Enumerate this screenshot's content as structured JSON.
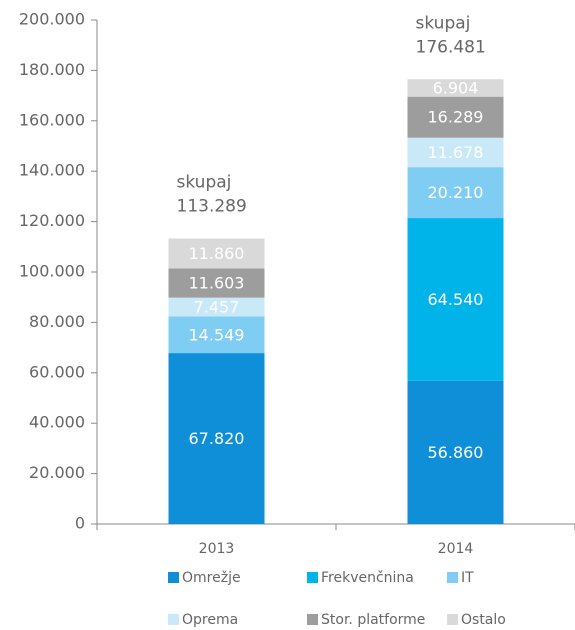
{
  "chart_data": {
    "type": "stacked_bar",
    "categories": [
      "2013",
      "2014"
    ],
    "series": [
      {
        "name": "Omrežje",
        "color": "#0f8fd8",
        "values": [
          67820,
          56860
        ],
        "value_labels": [
          "67.820",
          "56.860"
        ]
      },
      {
        "name": "Frekvenčnina",
        "color": "#00b3e8",
        "values": [
          null,
          64540
        ],
        "value_labels": [
          null,
          "64.540"
        ]
      },
      {
        "name": "IT",
        "color": "#7fcdf2",
        "values": [
          14549,
          20210
        ],
        "value_labels": [
          "14.549",
          "20.210"
        ]
      },
      {
        "name": "Oprema",
        "color": "#c9e9f9",
        "values": [
          7457,
          11678
        ],
        "value_labels": [
          "7.457",
          "11.678"
        ]
      },
      {
        "name": "Stor. platforme",
        "color": "#9d9d9d",
        "values": [
          11603,
          16289
        ],
        "value_labels": [
          "11.603",
          "16.289"
        ]
      },
      {
        "name": "Ostalo",
        "color": "#d9d9d9",
        "values": [
          11860,
          6904
        ],
        "value_labels": [
          "11.860",
          "6.904"
        ]
      }
    ],
    "annotations": [
      {
        "text": "skupaj",
        "value": 113289,
        "label": "113.289"
      },
      {
        "text": "skupaj",
        "value": 176481,
        "label": "176.481"
      }
    ],
    "ylim": [
      0,
      200000
    ],
    "yticks": [
      0,
      {
        "value": 20000,
        "label": "20.000"
      },
      {
        "value": 40000,
        "label": "40.000"
      },
      {
        "value": 60000,
        "label": "60.000"
      },
      {
        "value": 80000,
        "label": "80.000"
      },
      {
        "value": 100000,
        "label": "100.000"
      },
      {
        "value": 120000,
        "label": "120.000"
      },
      {
        "value": 140000,
        "label": "140.000"
      },
      {
        "value": 160000,
        "label": "160.000"
      },
      {
        "value": 180000,
        "label": "180.000"
      },
      {
        "value": 200000,
        "label": "200.000"
      }
    ],
    "legend": "bottom"
  }
}
